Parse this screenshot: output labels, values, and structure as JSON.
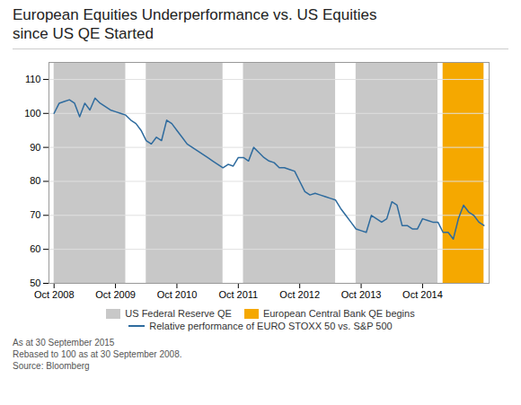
{
  "chart_data": {
    "type": "line",
    "title": "European Equities Underperformance vs. US Equities\nsince US QE Started",
    "x": [
      0,
      1,
      2,
      3,
      4,
      5,
      6,
      7,
      8,
      9,
      10,
      11,
      12,
      13,
      14,
      15,
      16,
      17,
      18,
      19,
      20,
      21,
      22,
      23,
      24,
      25,
      26,
      27,
      28,
      29,
      30,
      31,
      32,
      33,
      34,
      35,
      36,
      37,
      38,
      39,
      40,
      41,
      42,
      43,
      44,
      45,
      46,
      47,
      48,
      49,
      50,
      51,
      52,
      53,
      54,
      55,
      56,
      57,
      58,
      59,
      60,
      61,
      62,
      63,
      64,
      65,
      66,
      67,
      68,
      69,
      70,
      71,
      72,
      73,
      74,
      75,
      76,
      77,
      78,
      79,
      80,
      81,
      82,
      83,
      84
    ],
    "series": [
      {
        "name": "Relative performance of EURO STOXX 50 vs. S&P 500",
        "color": "#2e6b9e",
        "values": [
          100,
          103,
          103.5,
          104,
          103,
          99,
          103,
          101,
          104.5,
          103,
          102,
          101,
          100.5,
          100,
          99.5,
          98,
          97,
          95,
          92,
          91,
          93,
          92,
          98,
          97,
          95,
          93,
          91,
          90,
          89,
          88,
          87,
          86,
          85,
          84,
          85,
          84.5,
          87,
          87,
          86,
          90,
          88.5,
          87,
          86,
          85.5,
          84,
          84,
          83.5,
          83,
          80,
          77,
          76,
          76.5,
          76,
          75.5,
          75,
          74.5,
          72,
          70,
          68,
          66,
          65.5,
          65,
          70,
          69,
          68,
          69,
          74,
          73,
          67,
          67,
          66,
          66,
          69,
          68.5,
          68,
          68,
          65,
          65,
          63,
          69,
          73,
          71,
          70,
          68,
          67
        ]
      }
    ],
    "spans": [
      {
        "name": "US Federal Reserve QE",
        "color": "#c8c8c8",
        "periods": [
          [
            0,
            14
          ],
          [
            18,
            33
          ],
          [
            37,
            55
          ],
          [
            59,
            75
          ]
        ]
      },
      {
        "name": "European Central Bank QE begins",
        "color": "#f5a800",
        "periods": [
          [
            76,
            84
          ]
        ]
      }
    ],
    "annotations": [
      "As at 30 September 2015",
      "Rebased to 100 as at 30 September 2008.",
      "Source: Bloomberg"
    ],
    "xlim": [
      -1,
      85
    ],
    "xticks": [
      {
        "value": 0,
        "label": "Oct 2008"
      },
      {
        "value": 12,
        "label": "Oct 2009"
      },
      {
        "value": 24,
        "label": "Oct 2010"
      },
      {
        "value": 36,
        "label": "Oct 2011"
      },
      {
        "value": 48,
        "label": "Oct 2012"
      },
      {
        "value": 60,
        "label": "Oct 2013"
      },
      {
        "value": 72,
        "label": "Oct 2014"
      }
    ],
    "ylim": [
      50,
      115
    ],
    "yticks": [
      50,
      60,
      70,
      80,
      90,
      100,
      110
    ],
    "grid": true,
    "legend": "bottom"
  }
}
